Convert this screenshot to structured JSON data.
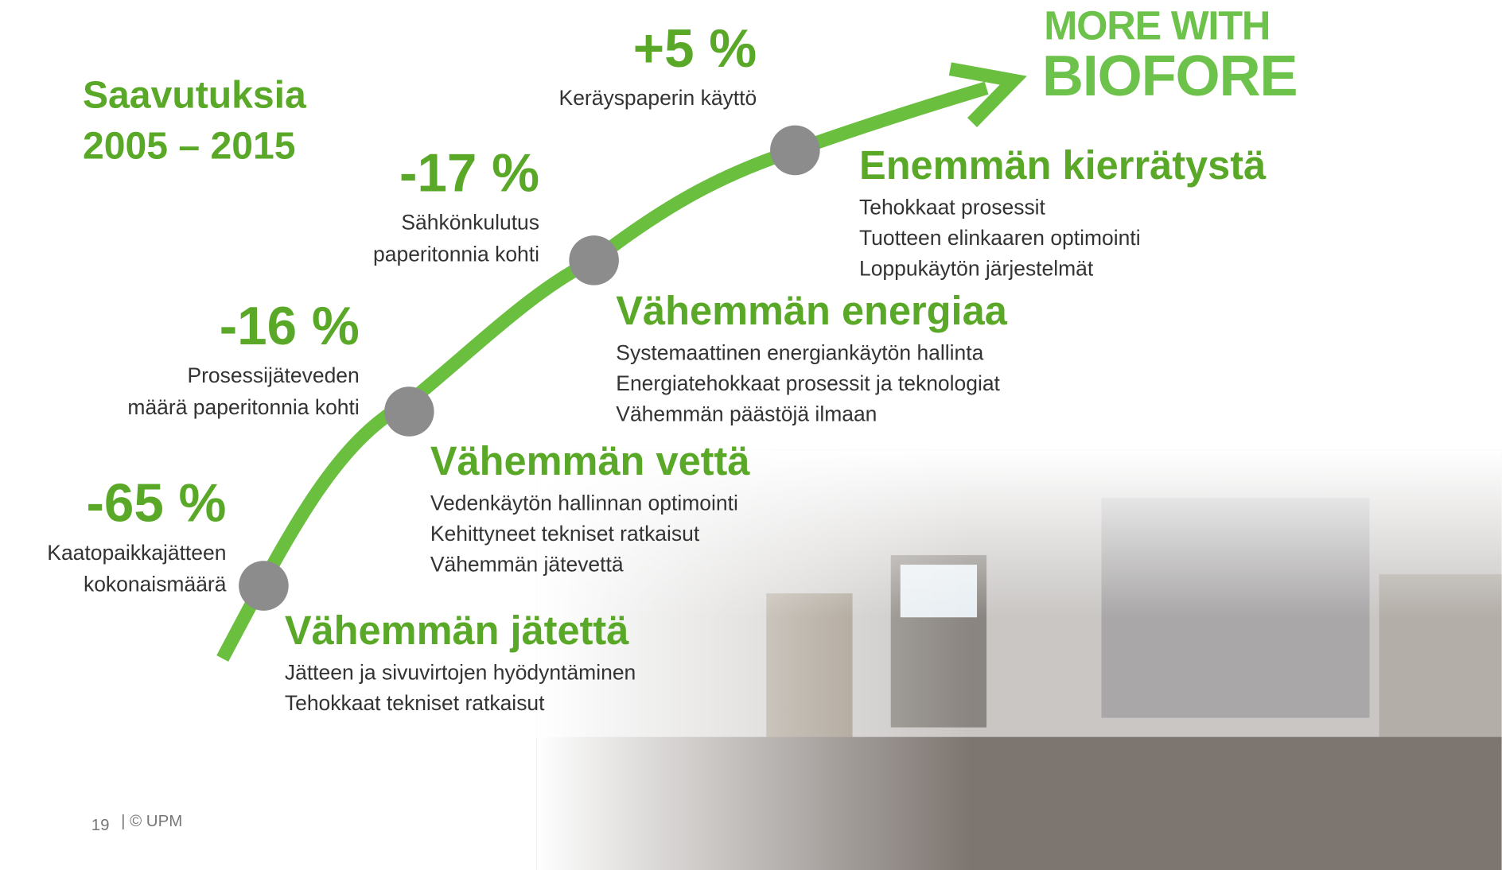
{
  "title": [
    "Saavutuksia",
    "2005 – 2015"
  ],
  "logo": [
    "MORE WITH",
    "BIOFORE"
  ],
  "stats": [
    {
      "value": "+5 %",
      "label": [
        "Keräyspaperin käyttö"
      ]
    },
    {
      "value": "-17 %",
      "label": [
        "Sähkönkulutus",
        "paperitonnia kohti"
      ]
    },
    {
      "value": "-16 %",
      "label": [
        "Prosessijäteveden",
        "määrä paperitonnia kohti"
      ]
    },
    {
      "value": "-65 %",
      "label": [
        "Kaatopaikkajätteen",
        "kokonaismäärä"
      ]
    }
  ],
  "sections": [
    {
      "heading": "Enemmän kierrätystä",
      "items": [
        "Tehokkaat prosessit",
        "Tuotteen elinkaaren optimointi",
        "Loppukäytön järjestelmät"
      ]
    },
    {
      "heading": "Vähemmän energiaa",
      "items": [
        "Systemaattinen energiankäytön hallinta",
        "Energiatehokkaat prosessit ja teknologiat",
        "Vähemmän päästöjä ilmaan"
      ]
    },
    {
      "heading": "Vähemmän vettä",
      "items": [
        "Vedenkäytön hallinnan optimointi",
        "Kehittyneet tekniset ratkaisut",
        "Vähemmän jätevettä"
      ]
    },
    {
      "heading": "Vähemmän jätettä",
      "items": [
        "Jätteen ja sivuvirtojen hyödyntäminen",
        "Tehokkaat tekniset ratkaisut"
      ]
    }
  ],
  "footer": {
    "page": "19",
    "copyright": "| © UPM"
  }
}
